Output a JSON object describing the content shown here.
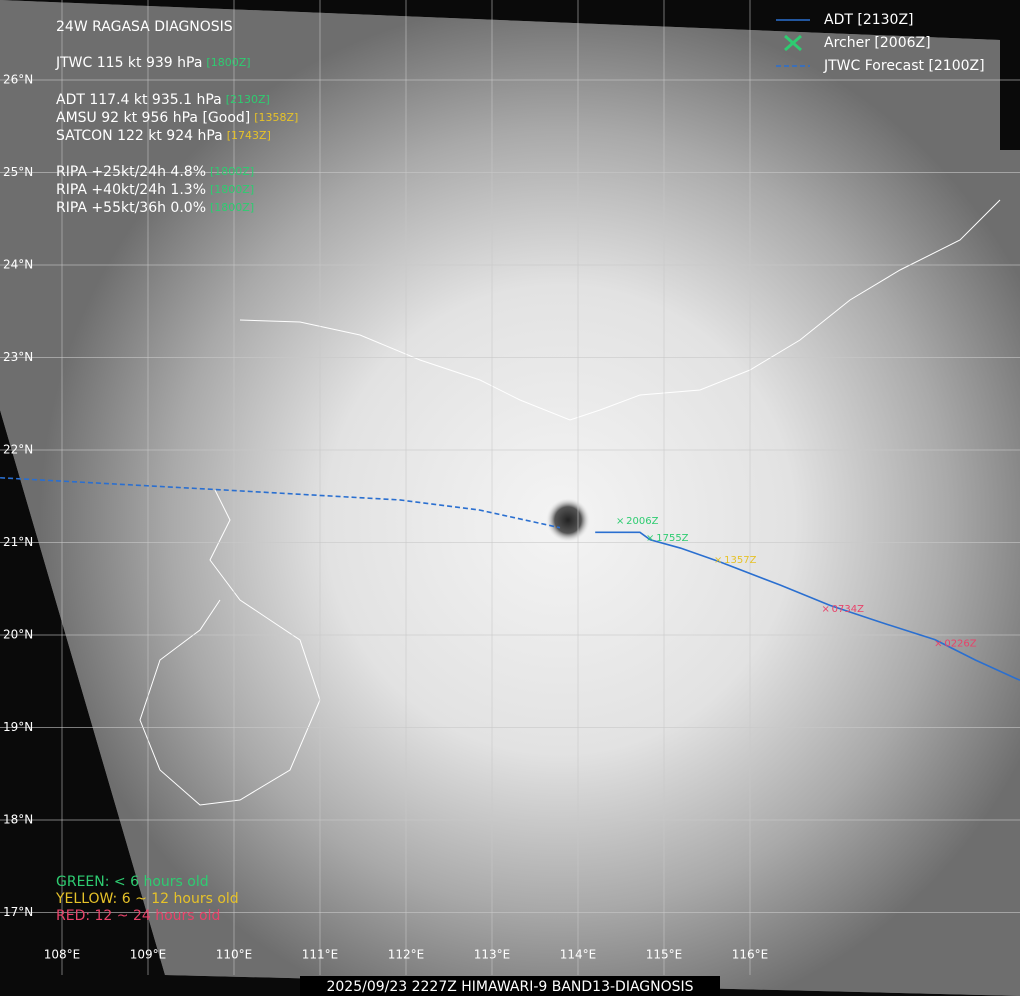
{
  "header": {
    "title": "24W  RAGASA  DIAGNOSIS"
  },
  "info": [
    [
      {
        "text": "JTWC  115 kt  939 hPa",
        "time": "[1800Z]",
        "color": "#2ecc71"
      }
    ],
    [
      {
        "text": "ADT  117.4 kt  935.1 hPa",
        "time": "[2130Z]",
        "color": "#2ecc71"
      },
      {
        "text": "AMSU  92 kt  956 hPa  [Good]",
        "time": "[1358Z]",
        "color": "#e6c229"
      },
      {
        "text": "SATCON  122 kt  924 hPa",
        "time": "[1743Z]",
        "color": "#e6c229"
      }
    ],
    [
      {
        "text": "RIPA  +25kt/24h 4.8%",
        "time": "[1800Z]",
        "color": "#2ecc71"
      },
      {
        "text": "RIPA  +40kt/24h 1.3%",
        "time": "[1800Z]",
        "color": "#2ecc71"
      },
      {
        "text": "RIPA  +55kt/36h 0.0%",
        "time": "[1800Z]",
        "color": "#2ecc71"
      }
    ]
  ],
  "legend": [
    {
      "label": "ADT [2130Z]",
      "style": "solid",
      "color": "#2a6fd0"
    },
    {
      "label": "Archer [2006Z]",
      "style": "cross",
      "color": "#2ecc71"
    },
    {
      "label": "JTWC Forecast [2100Z]",
      "style": "dashed",
      "color": "#2a6fd0"
    }
  ],
  "grid": {
    "lat_ticks": [
      {
        "value": 26,
        "label": "26°N"
      },
      {
        "value": 25,
        "label": "25°N"
      },
      {
        "value": 24,
        "label": "24°N"
      },
      {
        "value": 23,
        "label": "23°N"
      },
      {
        "value": 22,
        "label": "22°N"
      },
      {
        "value": 21,
        "label": "21°N"
      },
      {
        "value": 20,
        "label": "20°N"
      },
      {
        "value": 19,
        "label": "19°N"
      },
      {
        "value": 18,
        "label": "18°N"
      },
      {
        "value": 17,
        "label": "17°N"
      }
    ],
    "lon_ticks": [
      {
        "value": 108,
        "label": "108°E"
      },
      {
        "value": 109,
        "label": "109°E"
      },
      {
        "value": 110,
        "label": "110°E"
      },
      {
        "value": 111,
        "label": "111°E"
      },
      {
        "value": 112,
        "label": "112°E"
      },
      {
        "value": 113,
        "label": "113°E"
      },
      {
        "value": 114,
        "label": "114°E"
      },
      {
        "value": 115,
        "label": "115°E"
      },
      {
        "value": 116,
        "label": "116°E"
      }
    ]
  },
  "tracks": [
    {
      "name": "ADT",
      "style": "solid",
      "color": "#2a6fd0",
      "lon": [
        119.14,
        118.62,
        118.15,
        117.51,
        116.93,
        116.35,
        115.65,
        115.19,
        114.84,
        114.72,
        114.2
      ],
      "lat": [
        19.51,
        19.73,
        19.95,
        20.14,
        20.32,
        20.54,
        20.79,
        20.94,
        21.03,
        21.11,
        21.11
      ]
    },
    {
      "name": "JTWC Forecast",
      "style": "dashed",
      "color": "#2a6fd0",
      "lon": [
        107.28,
        109.84,
        111.93,
        112.86,
        113.79
      ],
      "lat": [
        21.7,
        21.57,
        21.46,
        21.35,
        21.16
      ]
    }
  ],
  "fixes": [
    {
      "label": "2006Z",
      "lon": 114.49,
      "lat": 21.23,
      "color": "#2ecc71"
    },
    {
      "label": "1755Z",
      "lon": 114.84,
      "lat": 21.05,
      "color": "#2ecc71"
    },
    {
      "label": "1357Z",
      "lon": 115.63,
      "lat": 20.81,
      "color": "#e6c229"
    },
    {
      "label": "0734Z",
      "lon": 116.88,
      "lat": 20.28,
      "color": "#e8436a"
    },
    {
      "label": "0226Z",
      "lon": 118.19,
      "lat": 19.91,
      "color": "#e8436a"
    }
  ],
  "age_key": [
    {
      "text": "GREEN: < 6 hours old",
      "color": "#2ecc71"
    },
    {
      "text": "YELLOW: 6 ~ 12 hours old",
      "color": "#e6c229"
    },
    {
      "text": "RED: 12 ~ 24 hours old",
      "color": "#e8436a"
    }
  ],
  "caption": "2025/09/23 2227Z HIMAWARI-9 BAND13-DIAGNOSIS"
}
